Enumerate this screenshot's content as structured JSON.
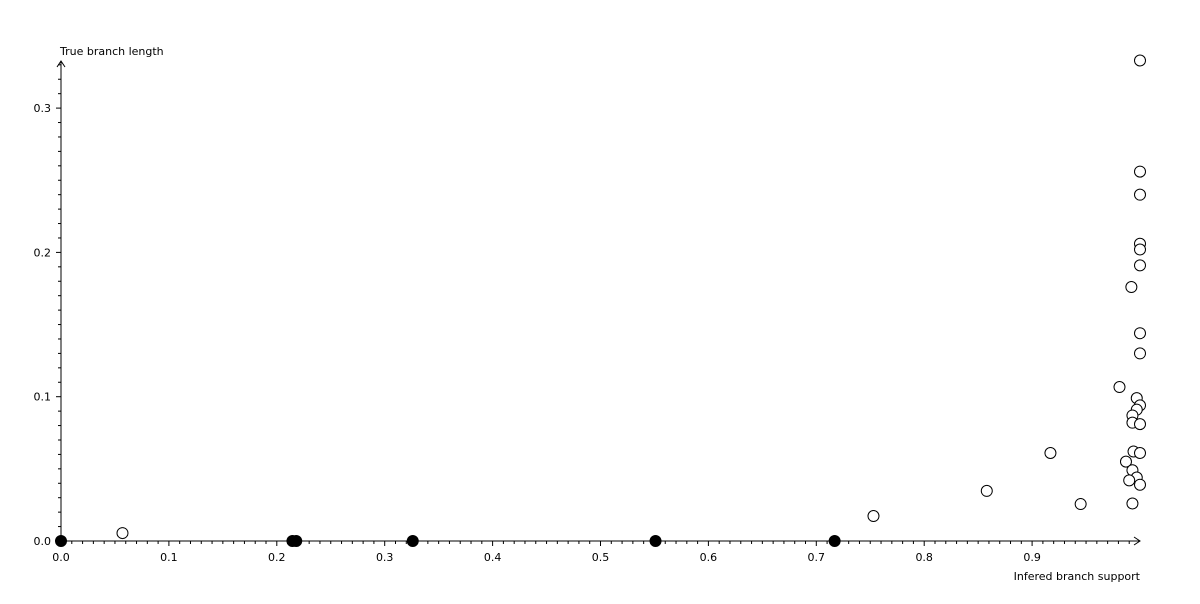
{
  "chart_data": {
    "type": "scatter",
    "xlabel": "Infered branch support",
    "ylabel": "True branch length",
    "xlim": [
      0,
      1.0
    ],
    "ylim": [
      0,
      0.333
    ],
    "grid": false,
    "x_ticks": [
      "0.0",
      "0.1",
      "0.2",
      "0.3",
      "0.4",
      "0.5",
      "0.6",
      "0.7",
      "0.8",
      "0.9"
    ],
    "y_ticks": [
      "0.0",
      "0.1",
      "0.2",
      "0.3"
    ],
    "x_tick_values": [
      0,
      0.1,
      0.2,
      0.3,
      0.4,
      0.5,
      0.6,
      0.7,
      0.8,
      0.9
    ],
    "y_tick_values": [
      0,
      0.1,
      0.2,
      0.3
    ],
    "colors": {
      "axis": "#000000",
      "open_marker": "#ffffff",
      "filled_marker": "#000000"
    },
    "series": [
      {
        "marker": "open-circle",
        "points": [
          [
            0.057,
            0.0055
          ],
          [
            0.753,
            0.0173
          ],
          [
            0.858,
            0.0347
          ],
          [
            0.917,
            0.061
          ],
          [
            0.945,
            0.0256
          ],
          [
            0.981,
            0.1067
          ],
          [
            0.992,
            0.176
          ],
          [
            1.0,
            0.333
          ],
          [
            1.0,
            0.256
          ],
          [
            1.0,
            0.24
          ],
          [
            1.0,
            0.206
          ],
          [
            1.0,
            0.202
          ],
          [
            1.0,
            0.191
          ],
          [
            1.0,
            0.144
          ],
          [
            1.0,
            0.13
          ],
          [
            0.997,
            0.099
          ],
          [
            1.0,
            0.094
          ],
          [
            0.997,
            0.091
          ],
          [
            0.993,
            0.087
          ],
          [
            0.993,
            0.082
          ],
          [
            1.0,
            0.081
          ],
          [
            0.994,
            0.062
          ],
          [
            1.0,
            0.061
          ],
          [
            0.987,
            0.055
          ],
          [
            0.993,
            0.049
          ],
          [
            0.997,
            0.044
          ],
          [
            0.99,
            0.042
          ],
          [
            1.0,
            0.039
          ],
          [
            0.993,
            0.026
          ]
        ]
      },
      {
        "marker": "filled-circle",
        "points": [
          [
            0.0,
            0.0
          ],
          [
            0.2145,
            0.0
          ],
          [
            0.218,
            0.0
          ],
          [
            0.326,
            0.0
          ],
          [
            0.551,
            0.0
          ],
          [
            0.717,
            0.0
          ]
        ]
      }
    ]
  }
}
